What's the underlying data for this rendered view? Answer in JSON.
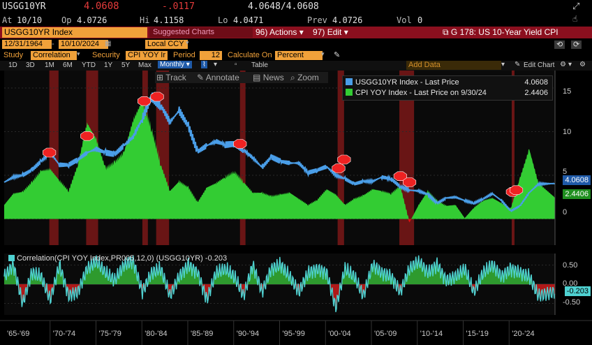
{
  "header": {
    "ticker": "USGG10YR",
    "last": "4.0608",
    "change": "-.0117",
    "bidask": "4.0648/4.0608",
    "at_label": "At",
    "at": "10/10",
    "open_label": "Op",
    "open": "4.0726",
    "hi_label": "Hi",
    "hi": "4.1158",
    "lo_label": "Lo",
    "lo": "4.0471",
    "prev_label": "Prev",
    "prev": "4.0726",
    "vol_label": "Vol",
    "vol": "0"
  },
  "toolbar": {
    "security_field": "USGG10YR Index",
    "suggested": "Suggested Charts",
    "actions_num": "96)",
    "actions": "Actions",
    "edit_num": "97)",
    "edit": "Edit",
    "chart_title": "G 178: US 10-Year Yield CPI"
  },
  "params": {
    "start_date": "12/31/1964",
    "end_date": "10/10/2024",
    "currency": "Local CCY",
    "study_label": "Study",
    "study": "Correlation",
    "security_label": "Security",
    "security": "CPI YOY Ir",
    "period_label": "Period",
    "period": "12",
    "calc_label": "Calculate On",
    "calc": "Percent"
  },
  "timeframes": [
    "1D",
    "3D",
    "1M",
    "6M",
    "YTD",
    "1Y",
    "5Y",
    "Max"
  ],
  "frequency": "Monthly",
  "table_label": "Table",
  "add_data": "Add Data",
  "edit_chart": "Edit Chart",
  "tools": {
    "track": "Track",
    "annotate": "Annotate",
    "news": "News",
    "zoom": "Zoom"
  },
  "colors": {
    "yield": "#4a9ee8",
    "cpi": "#33cc33",
    "cpi_neg": "#e01010",
    "corr": "#4fd2d2",
    "recession": "#7a1818"
  },
  "chart_data": [
    {
      "type": "line",
      "title": "",
      "legend": [
        {
          "name": "USGG10YR Index - Last Price",
          "value": "4.0608",
          "color": "#4a9ee8"
        },
        {
          "name": "CPI YOY Index - Last Price on 9/30/24",
          "value": "2.4406",
          "color": "#33cc33"
        }
      ],
      "ylim": [
        -3,
        17
      ],
      "yticks": [
        "15",
        "10",
        "5",
        "0"
      ],
      "last_tags": {
        "yield": "4.0608",
        "cpi": "2.4406"
      },
      "x_start": 1965,
      "x_end": 2024.8,
      "recessions": [
        [
          1969.9,
          1970.9
        ],
        [
          1973.9,
          1975.2
        ],
        [
          1980.0,
          1980.6
        ],
        [
          1981.5,
          1982.9
        ],
        [
          1990.6,
          1991.2
        ],
        [
          2001.2,
          2001.9
        ],
        [
          2007.9,
          2009.5
        ],
        [
          2020.1,
          2020.4
        ]
      ],
      "series": [
        {
          "name": "USGG10YR Index - Last Price",
          "x": [
            1965,
            1966,
            1967,
            1968,
            1969,
            1970,
            1971,
            1972,
            1973,
            1974,
            1975,
            1976,
            1977,
            1978,
            1979,
            1980,
            1981,
            1982,
            1983,
            1984,
            1985,
            1986,
            1987,
            1988,
            1989,
            1990,
            1991,
            1992,
            1993,
            1994,
            1995,
            1996,
            1997,
            1998,
            1999,
            2000,
            2001,
            2002,
            2003,
            2004,
            2005,
            2006,
            2007,
            2008,
            2009,
            2010,
            2011,
            2012,
            2013,
            2014,
            2015,
            2016,
            2017,
            2018,
            2019,
            2020,
            2021,
            2022,
            2023,
            2024.8
          ],
          "values": [
            4.2,
            4.8,
            5.0,
            5.6,
            6.6,
            7.6,
            6.2,
            6.2,
            6.8,
            7.6,
            8.0,
            7.6,
            7.4,
            8.4,
            9.4,
            11.5,
            14.0,
            13.0,
            11.1,
            12.4,
            10.6,
            7.7,
            8.4,
            8.9,
            8.5,
            8.6,
            7.9,
            7.0,
            5.9,
            7.1,
            6.6,
            6.4,
            6.4,
            5.3,
            5.6,
            6.0,
            5.0,
            4.6,
            4.0,
            4.3,
            4.3,
            4.8,
            4.6,
            3.7,
            3.3,
            3.2,
            2.8,
            1.8,
            2.4,
            2.5,
            2.1,
            1.8,
            2.3,
            2.9,
            2.1,
            0.9,
            1.5,
            3.0,
            4.0,
            4.06
          ]
        },
        {
          "name": "CPI YOY Index - Last Price on 9/30/24",
          "x": [
            1965,
            1966,
            1967,
            1968,
            1969,
            1970,
            1971,
            1972,
            1973,
            1974,
            1975,
            1976,
            1977,
            1978,
            1979,
            1980,
            1981,
            1982,
            1983,
            1984,
            1985,
            1986,
            1987,
            1988,
            1989,
            1990,
            1991,
            1992,
            1993,
            1994,
            1995,
            1996,
            1997,
            1998,
            1999,
            2000,
            2001,
            2002,
            2003,
            2004,
            2005,
            2006,
            2007,
            2008,
            2009,
            2010,
            2011,
            2012,
            2013,
            2014,
            2015,
            2016,
            2017,
            2018,
            2019,
            2020,
            2021,
            2022,
            2023,
            2024.8
          ],
          "values": [
            1.6,
            2.9,
            3.1,
            4.2,
            5.5,
            5.7,
            4.4,
            3.2,
            6.2,
            11.0,
            9.1,
            5.8,
            6.5,
            7.6,
            11.3,
            13.5,
            10.3,
            6.2,
            3.2,
            4.3,
            3.6,
            1.9,
            3.6,
            4.1,
            4.8,
            5.4,
            4.2,
            3.0,
            3.0,
            2.6,
            2.8,
            3.0,
            2.3,
            1.6,
            2.2,
            3.4,
            2.8,
            1.6,
            2.3,
            2.7,
            3.4,
            3.2,
            2.9,
            3.8,
            -0.4,
            1.6,
            3.2,
            2.1,
            1.5,
            1.6,
            0.1,
            1.3,
            2.1,
            2.4,
            1.8,
            1.2,
            4.7,
            8.0,
            4.1,
            2.44
          ]
        }
      ]
    },
    {
      "type": "area",
      "title": "Correlation(CPI YOY Index,PR005,12,0) (USGG10YR)",
      "last_value": "-0.203",
      "ylim": [
        -0.8,
        0.8
      ],
      "yticks": [
        "0.50",
        "0.00",
        "-0.50"
      ],
      "series": [
        {
          "name": "Correlation",
          "x": [
            1965,
            1966,
            1967,
            1968,
            1969,
            1970,
            1971,
            1972,
            1973,
            1974,
            1975,
            1976,
            1977,
            1978,
            1979,
            1980,
            1981,
            1982,
            1983,
            1984,
            1985,
            1986,
            1987,
            1988,
            1989,
            1990,
            1991,
            1992,
            1993,
            1994,
            1995,
            1996,
            1997,
            1998,
            1999,
            2000,
            2001,
            2002,
            2003,
            2004,
            2005,
            2006,
            2007,
            2008,
            2009,
            2010,
            2011,
            2012,
            2013,
            2014,
            2015,
            2016,
            2017,
            2018,
            2019,
            2020,
            2021,
            2022,
            2023,
            2024.8
          ],
          "values": [
            0.2,
            0.5,
            -0.5,
            0.3,
            0.2,
            -0.4,
            0.5,
            -0.3,
            -0.2,
            0.4,
            0.6,
            0.3,
            0.1,
            0.5,
            0.6,
            -0.2,
            0.3,
            0.4,
            -0.3,
            0.2,
            0.5,
            0.3,
            -0.4,
            0.3,
            0.4,
            0.2,
            -0.3,
            0.5,
            -0.2,
            0.4,
            0.5,
            0.2,
            -0.2,
            0.3,
            0.4,
            0.3,
            -0.6,
            0.4,
            0.2,
            -0.3,
            0.5,
            0.3,
            0.2,
            -0.2,
            0.4,
            0.6,
            0.3,
            0.5,
            0.1,
            0.2,
            0.4,
            -0.2,
            0.3,
            0.5,
            0.2,
            0.4,
            0.3,
            0.2,
            -0.3,
            -0.203
          ]
        }
      ],
      "x_labels": [
        "'65-'69",
        "'70-'74",
        "'75-'79",
        "'80-'84",
        "'85-'89",
        "'90-'94",
        "'95-'99",
        "'00-'04",
        "'05-'09",
        "'10-'14",
        "'15-'19",
        "'20-'24"
      ]
    }
  ]
}
